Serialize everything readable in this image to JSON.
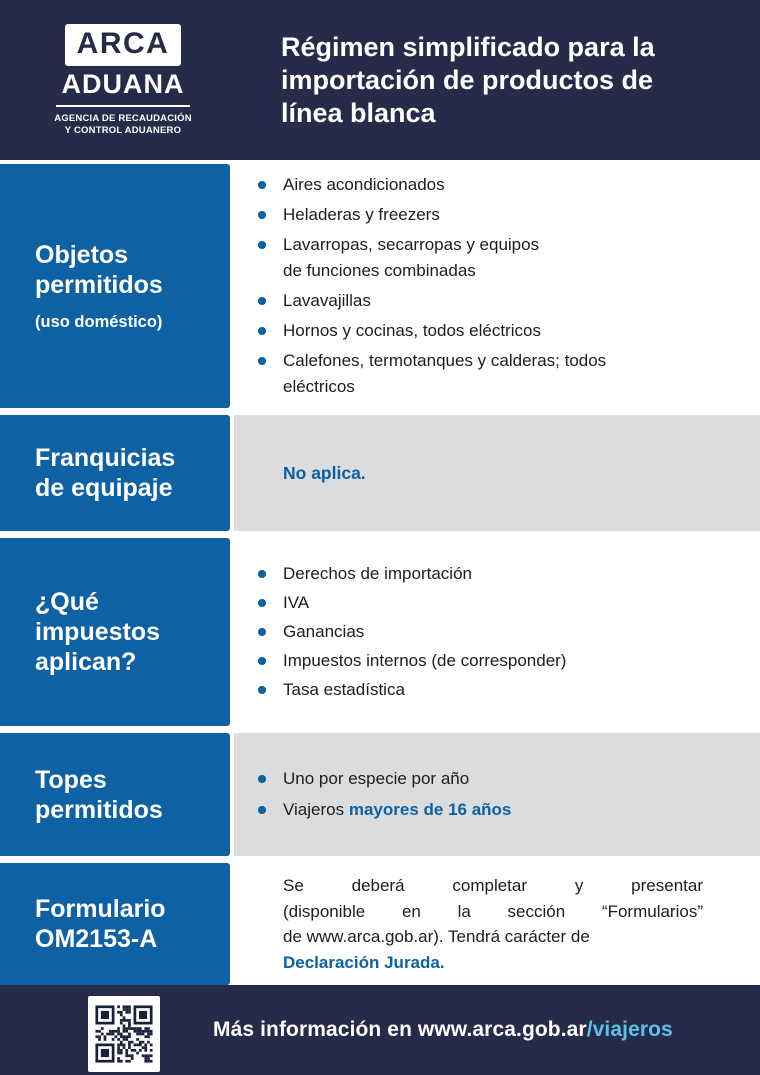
{
  "colors": {
    "navy": "#262B49",
    "blue": "#0E61A3",
    "gray": "#DBDCDD",
    "light_blue": "#5EC1E8",
    "body_text": "#1D1D1B",
    "white": "#FFFFFF"
  },
  "header": {
    "logo": {
      "arca": "ARCA",
      "aduana": "ADUANA",
      "tagline_line1": "AGENCIA DE RECAUDACIÓN",
      "tagline_line2": "Y CONTROL ADUANERO"
    },
    "title_lines": [
      "Régimen simplificado para la",
      "importación de productos de",
      "línea blanca"
    ]
  },
  "sections": [
    {
      "title": "Objetos permitidos",
      "subtitle": "(uso doméstico)",
      "items": [
        {
          "lines": [
            "Aires acondicionados"
          ]
        },
        {
          "lines": [
            "Heladeras y freezers"
          ]
        },
        {
          "lines": [
            "Lavarropas, secarropas y equipos",
            "de funciones combinadas"
          ]
        },
        {
          "lines": [
            "Lavavajillas"
          ]
        },
        {
          "lines": [
            "Hornos y cocinas, todos eléctricos"
          ]
        },
        {
          "lines": [
            "Calefones, termotanques y calderas; todos",
            "eléctricos"
          ]
        }
      ]
    },
    {
      "title": "Franquicias de equipaje",
      "note": "No aplica."
    },
    {
      "title": "¿Qué impuestos aplican?",
      "items": [
        {
          "lines": [
            "Derechos de importación"
          ]
        },
        {
          "lines": [
            "IVA"
          ]
        },
        {
          "lines": [
            "Ganancias"
          ]
        },
        {
          "lines": [
            "Impuestos internos (de corresponder)"
          ]
        },
        {
          "lines": [
            "Tasa estadística"
          ]
        }
      ]
    },
    {
      "title": "Topes permitidos",
      "items": [
        {
          "lines": [
            "Uno por especie por año"
          ]
        },
        {
          "lines": [
            "Viajeros "
          ],
          "highlight": "mayores de 16 años"
        }
      ]
    },
    {
      "title": "Formulario OM2153-A",
      "paragraph_lines": [
        "Se deberá completar y presentar",
        "(disponible en  la sección “Formularios”",
        "de www.arca.gob.ar). Tendrá carácter de"
      ],
      "paragraph_highlight": "Declaración Jurada."
    }
  ],
  "footer": {
    "text": "Más información en www.arca.gob.ar",
    "link_highlight": "/viajeros"
  }
}
